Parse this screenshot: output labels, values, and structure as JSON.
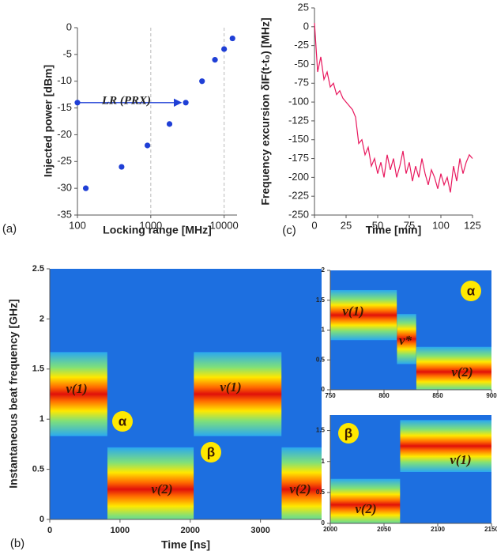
{
  "chart_data": [
    {
      "type": "scatter",
      "panel_label": "(a)",
      "xlabel": "Locking range [MHz]",
      "ylabel": "Injected power [dBm]",
      "x": [
        100,
        130,
        400,
        900,
        1800,
        3000,
        5000,
        7500,
        10000,
        13000
      ],
      "values": [
        -14,
        -30,
        -26,
        -22,
        -18,
        -14,
        -10,
        -6,
        -4,
        -2
      ],
      "color": "#1f3fd6",
      "xscale": "log",
      "xlim": [
        100,
        15000
      ],
      "xticks": [
        100,
        1000,
        10000
      ],
      "ylim": [
        -35,
        0
      ],
      "yticks": [
        0,
        -5,
        -10,
        -15,
        -20,
        -25,
        -30,
        -35
      ],
      "xgrid": true,
      "annotations": [
        "LR (PRX)"
      ]
    },
    {
      "type": "line",
      "panel_label": "(c)",
      "xlabel": "Time [min]",
      "ylabel": "Frequency excursion δIF(t-t₀) [MHz]",
      "x": [
        0,
        2.5,
        5,
        7.5,
        10,
        12.5,
        15,
        17.5,
        20,
        22.5,
        25,
        27.5,
        30,
        32.5,
        35,
        37.5,
        40,
        42.5,
        45,
        47.5,
        50,
        52.5,
        55,
        57.5,
        60,
        62.5,
        65,
        67.5,
        70,
        72.5,
        75,
        77.5,
        80,
        82.5,
        85,
        87.5,
        90,
        92.5,
        95,
        97.5,
        100,
        102.5,
        105,
        107.5,
        110,
        112.5,
        115,
        117.5,
        120,
        122.5,
        125
      ],
      "values": [
        5,
        -60,
        -40,
        -70,
        -60,
        -80,
        -75,
        -90,
        -85,
        -95,
        -100,
        -105,
        -110,
        -120,
        -155,
        -150,
        -170,
        -160,
        -185,
        -175,
        -195,
        -180,
        -200,
        -170,
        -190,
        -175,
        -200,
        -185,
        -165,
        -195,
        -180,
        -205,
        -185,
        -200,
        -175,
        -195,
        -210,
        -190,
        -200,
        -215,
        -195,
        -210,
        -200,
        -220,
        -185,
        -205,
        -175,
        -195,
        -180,
        -170,
        -175
      ],
      "color": "#e8175d",
      "xlim": [
        0,
        125
      ],
      "xticks": [
        0,
        25,
        50,
        75,
        100,
        125
      ],
      "ylim": [
        -250,
        25
      ],
      "yticks": [
        25,
        0,
        -25,
        -50,
        -75,
        -100,
        -125,
        -150,
        -175,
        -200,
        -225,
        -250
      ]
    },
    {
      "type": "spectrogram",
      "panel_label": "(b)",
      "xlabel": "Time [ns]",
      "ylabel": "Instantaneous beat frequency [GHz]",
      "x": [
        0,
        820,
        2050,
        3300
      ],
      "values": [
        1.25,
        0.3,
        1.25,
        0.3
      ],
      "xlim": [
        0,
        3870
      ],
      "xticks": [
        0,
        1000,
        2000,
        3000
      ],
      "ylim": [
        0,
        2.5
      ],
      "yticks": [
        0,
        0.5,
        1,
        1.5,
        2,
        2.5
      ],
      "annotations": [
        "ν(1)",
        "ν(1)",
        "ν(2)",
        "ν(2)",
        "α",
        "β"
      ]
    },
    {
      "type": "spectrogram",
      "x": [
        750,
        812,
        830
      ],
      "values": [
        1.25,
        0.85,
        0.3
      ],
      "xlim": [
        750,
        900
      ],
      "xticks": [
        750,
        800,
        850,
        900
      ],
      "ylim": [
        0,
        2
      ],
      "yticks": [
        0,
        0.5,
        1,
        1.5,
        2
      ],
      "annotations": [
        "ν(1)",
        "ν*",
        "ν(2)",
        "α"
      ]
    },
    {
      "type": "spectrogram",
      "x": [
        2000,
        2065
      ],
      "values": [
        0.3,
        1.25
      ],
      "xlim": [
        2000,
        2150
      ],
      "xticks": [
        2000,
        2050,
        2100,
        2150
      ],
      "ylim": [
        0,
        1.75
      ],
      "yticks": [
        0,
        0.5,
        1,
        1.5
      ],
      "annotations": [
        "ν(2)",
        "ν(1)",
        "β"
      ]
    }
  ]
}
